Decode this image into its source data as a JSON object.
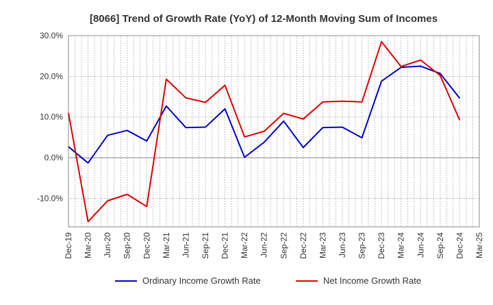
{
  "chart_data": {
    "type": "line",
    "title": "[8066]  Trend of Growth Rate (YoY) of 12-Month Moving Sum of Incomes",
    "xlabel": "",
    "ylabel": "",
    "ylim": [
      -17,
      30
    ],
    "yticks": [
      30,
      20,
      10,
      0,
      -10
    ],
    "ytick_labels": [
      "30.0%",
      "20.0%",
      "10.0%",
      "0.0%",
      "-10.0%"
    ],
    "categories": [
      "Dec-19",
      "Mar-20",
      "Jun-20",
      "Sep-20",
      "Dec-20",
      "Mar-21",
      "Jun-21",
      "Sep-21",
      "Dec-21",
      "Mar-22",
      "Jun-22",
      "Sep-22",
      "Dec-22",
      "Mar-23",
      "Jun-23",
      "Sep-23",
      "Dec-23",
      "Mar-24",
      "Jun-24",
      "Sep-24",
      "Dec-24",
      "Mar-25"
    ],
    "grid": true,
    "legend_position": "bottom",
    "series": [
      {
        "name": "Ordinary Income Growth Rate",
        "color": "#0000cc",
        "values": [
          2.7,
          -1.3,
          5.5,
          6.7,
          4.1,
          12.7,
          7.4,
          7.5,
          12.0,
          0.1,
          3.8,
          9.0,
          2.5,
          7.4,
          7.5,
          4.9,
          18.8,
          22.2,
          22.5,
          20.7,
          14.6,
          null
        ]
      },
      {
        "name": "Net Income Growth Rate",
        "color": "#dd0000",
        "values": [
          11.0,
          -15.7,
          -10.6,
          -9.0,
          -12.0,
          19.3,
          14.7,
          13.6,
          17.8,
          5.1,
          6.5,
          10.9,
          9.5,
          13.7,
          13.9,
          13.7,
          28.5,
          22.4,
          24.0,
          20.2,
          9.2,
          null
        ]
      }
    ]
  }
}
